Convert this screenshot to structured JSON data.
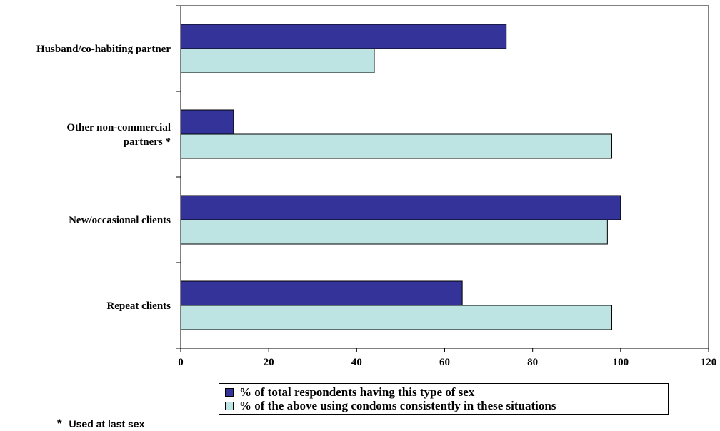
{
  "chart_data": {
    "type": "bar",
    "orientation": "horizontal",
    "categories": [
      "Husband/co-habiting partner",
      "Other non-commercial partners *",
      "New/occasional clients",
      "Repeat clients"
    ],
    "category_label_lines": [
      [
        "Husband/co-habiting partner"
      ],
      [
        "Other non-commercial",
        "partners *"
      ],
      [
        "New/occasional clients"
      ],
      [
        "Repeat clients"
      ]
    ],
    "series": [
      {
        "name": "% of total respondents having this type of sex",
        "color": "#333399",
        "values": [
          74,
          12,
          100,
          64
        ]
      },
      {
        "name": "% of the above using condoms consistently in these situations",
        "color": "#bde3e3",
        "values": [
          44,
          98,
          97,
          98
        ]
      }
    ],
    "xlim": [
      0,
      120
    ],
    "xticks": [
      0,
      20,
      40,
      60,
      80,
      100,
      120
    ],
    "grid": false,
    "legend_position": "bottom"
  },
  "footnote": {
    "symbol": "*",
    "text": "Used at last sex"
  }
}
